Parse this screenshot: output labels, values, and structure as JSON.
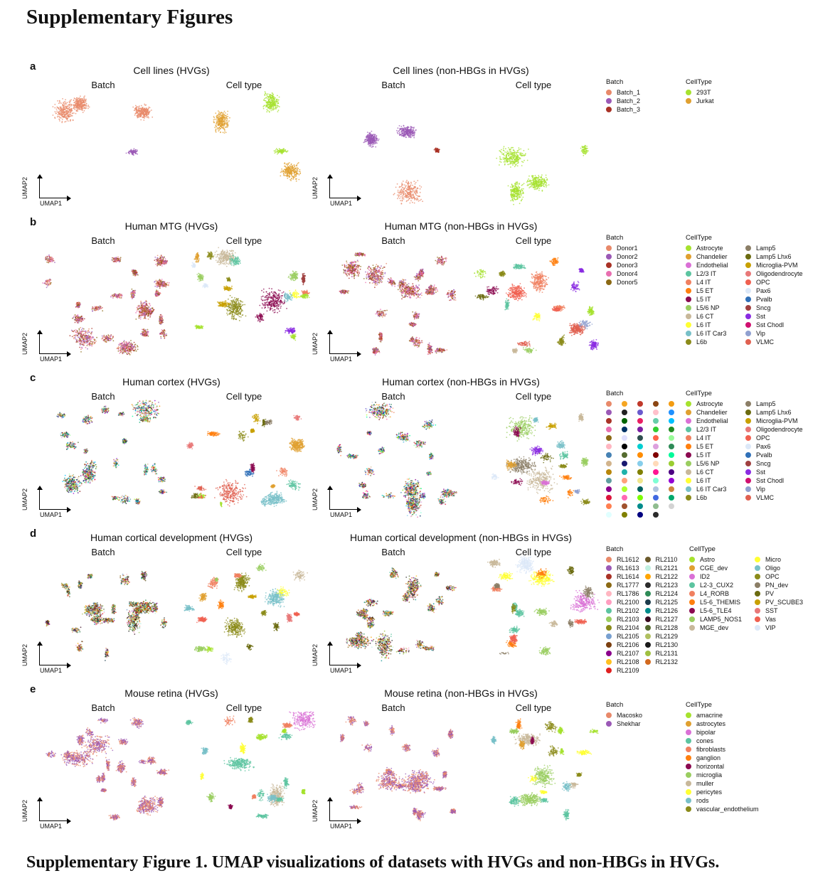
{
  "title": "Supplementary Figures",
  "caption": "Supplementary Figure 1. UMAP visualizations of datasets with HVGs and non-HBGs in HVGs.",
  "axis_labels": {
    "x": "UMAP1",
    "y": "UMAP2"
  },
  "sub_titles": {
    "batch": "Batch",
    "celltype": "Cell type"
  },
  "panels": [
    {
      "letter": "a",
      "left_title": "Cell lines (HVGs)",
      "right_title": "Cell lines (non-HBGs in HVGs)",
      "batch_legend": {
        "title": "Batch",
        "items": [
          {
            "label": "Batch_1",
            "color": "#e8896a"
          },
          {
            "label": "Batch_2",
            "color": "#9b59b6"
          },
          {
            "label": "Batch_3",
            "color": "#a93226"
          }
        ]
      },
      "celltype_legend": {
        "title": "CellType",
        "items": [
          {
            "label": "293T",
            "color": "#a6e22e"
          },
          {
            "label": "Jurkat",
            "color": "#e0a030"
          }
        ]
      }
    },
    {
      "letter": "b",
      "left_title": "Human MTG (HVGs)",
      "right_title": "Human MTG (non-HBGs in HVGs)",
      "batch_legend": {
        "title": "Batch",
        "items": [
          {
            "label": "Donor1",
            "color": "#e8896a"
          },
          {
            "label": "Donor2",
            "color": "#9b59b6"
          },
          {
            "label": "Donor3",
            "color": "#a93226"
          },
          {
            "label": "Donor4",
            "color": "#e86fb0"
          },
          {
            "label": "Donor5",
            "color": "#8b6914"
          }
        ]
      },
      "celltype_legend": {
        "title": "CellType",
        "items": [
          {
            "label": "Astrocyte",
            "color": "#a6e22e"
          },
          {
            "label": "Chandelier",
            "color": "#e0a030"
          },
          {
            "label": "Endothelial",
            "color": "#da70d6"
          },
          {
            "label": "L2/3 IT",
            "color": "#5cc4a0"
          },
          {
            "label": "L4 IT",
            "color": "#f08060"
          },
          {
            "label": "L5 ET",
            "color": "#ff7f0e"
          },
          {
            "label": "L5 IT",
            "color": "#8b0a50"
          },
          {
            "label": "L5/6 NP",
            "color": "#9acd60"
          },
          {
            "label": "L6 CT",
            "color": "#c8b89a"
          },
          {
            "label": "L6 IT",
            "color": "#ffff33"
          },
          {
            "label": "L6 IT Car3",
            "color": "#78c0c8"
          },
          {
            "label": "L6b",
            "color": "#8b8b1a"
          },
          {
            "label": "Lamp5",
            "color": "#8b7e66"
          },
          {
            "label": "Lamp5 Lhx6",
            "color": "#6b6b10"
          },
          {
            "label": "Microglia-PVM",
            "color": "#c8a000"
          },
          {
            "label": "Oligodendrocyte",
            "color": "#e87878"
          },
          {
            "label": "OPC",
            "color": "#f06050"
          },
          {
            "label": "Pax6",
            "color": "#dce8f8"
          },
          {
            "label": "Pvalb",
            "color": "#3070b8"
          },
          {
            "label": "Sncg",
            "color": "#a04040"
          },
          {
            "label": "Sst",
            "color": "#8a2be2"
          },
          {
            "label": "Sst Chodl",
            "color": "#d01070"
          },
          {
            "label": "Vip",
            "color": "#90a0d0"
          },
          {
            "label": "VLMC",
            "color": "#e06050"
          }
        ]
      }
    },
    {
      "letter": "c",
      "left_title": "Human cortex (HVGs)",
      "right_title": "Human cortex (non-HBGs in HVGs)",
      "batch_legend": {
        "title": "Batch",
        "colors": [
          "#e8896a",
          "#f5a623",
          "#c0392b",
          "#8b4513",
          "#f39c12",
          "#9b59b6",
          "#222222",
          "#6a5acd",
          "#ffc0cb",
          "#1e90ff",
          "#a93226",
          "#006400",
          "#e91e63",
          "#66cdaa",
          "#00bfff",
          "#e86fb0",
          "#003366",
          "#7b1fa2",
          "#32cd32",
          "#228b22",
          "#8b6914",
          "#e0e0ff",
          "#2f4f4f",
          "#ff6347",
          "#98fb98",
          "#ffb6c1",
          "#000000",
          "#00ced1",
          "#dda0dd",
          "#2e8b57",
          "#4682b4",
          "#556b2f",
          "#ff8c00",
          "#800000",
          "#00fa9a",
          "#d2b48c",
          "#191970",
          "#87ceeb",
          "#ffdab9",
          "#9acd32",
          "#b8860b",
          "#20b2aa",
          "#808000",
          "#ff1493",
          "#4b0082",
          "#5f9ea0",
          "#ffa07a",
          "#f0e68c",
          "#7fffd4",
          "#9400d3",
          "#8b008b",
          "#adff2f",
          "#006060",
          "#b0c4de",
          "#cd853f",
          "#dc143c",
          "#ff69b4",
          "#7cfc00",
          "#4169e1",
          "#00a86b",
          "#ff7f50",
          "#a0522d",
          "#008b8b",
          "#8fbc8f",
          "#d3d3d3",
          "#e0ffff",
          "#808000",
          "#000080",
          "#2b2b2b"
        ]
      },
      "celltype_legend": {
        "title": "CellType",
        "items": [
          {
            "label": "Astrocyte",
            "color": "#a6e22e"
          },
          {
            "label": "Chandelier",
            "color": "#e0a030"
          },
          {
            "label": "Endothelial",
            "color": "#da70d6"
          },
          {
            "label": "L2/3 IT",
            "color": "#5cc4a0"
          },
          {
            "label": "L4 IT",
            "color": "#f08060"
          },
          {
            "label": "L5 ET",
            "color": "#ff7f0e"
          },
          {
            "label": "L5 IT",
            "color": "#8b0a50"
          },
          {
            "label": "L5/6 NP",
            "color": "#9acd60"
          },
          {
            "label": "L6 CT",
            "color": "#c8b89a"
          },
          {
            "label": "L6 IT",
            "color": "#ffff33"
          },
          {
            "label": "L6 IT Car3",
            "color": "#78c0c8"
          },
          {
            "label": "L6b",
            "color": "#8b8b1a"
          },
          {
            "label": "Lamp5",
            "color": "#8b7e66"
          },
          {
            "label": "Lamp5 Lhx6",
            "color": "#6b6b10"
          },
          {
            "label": "Microglia-PVM",
            "color": "#c8a000"
          },
          {
            "label": "Oligodendrocyte",
            "color": "#e87878"
          },
          {
            "label": "OPC",
            "color": "#f06050"
          },
          {
            "label": "Pax6",
            "color": "#dce8f8"
          },
          {
            "label": "Pvalb",
            "color": "#3070b8"
          },
          {
            "label": "Sncg",
            "color": "#a04040"
          },
          {
            "label": "Sst",
            "color": "#8a2be2"
          },
          {
            "label": "Sst Chodl",
            "color": "#d01070"
          },
          {
            "label": "Vip",
            "color": "#90a0d0"
          },
          {
            "label": "VLMC",
            "color": "#e06050"
          }
        ]
      }
    },
    {
      "letter": "d",
      "left_title": "Human cortical development (HVGs)",
      "right_title": "Human cortical development (non-HBGs in HVGs)",
      "batch_legend": {
        "title": "Batch",
        "items": [
          {
            "label": "RL1612",
            "color": "#e8896a"
          },
          {
            "label": "RL1613",
            "color": "#9b59b6"
          },
          {
            "label": "RL1614",
            "color": "#a93226"
          },
          {
            "label": "RL1777",
            "color": "#8b6914"
          },
          {
            "label": "RL1786",
            "color": "#ffb6c1"
          },
          {
            "label": "RL2100",
            "color": "#ff9ec0"
          },
          {
            "label": "RL2102",
            "color": "#5cc4a0"
          },
          {
            "label": "RL2103",
            "color": "#9acd60"
          },
          {
            "label": "RL2104",
            "color": "#8b8b1a"
          },
          {
            "label": "RL2105",
            "color": "#78a0d0"
          },
          {
            "label": "RL2106",
            "color": "#7b3f10"
          },
          {
            "label": "RL2107",
            "color": "#8b008b"
          },
          {
            "label": "RL2108",
            "color": "#ffc020"
          },
          {
            "label": "RL2109",
            "color": "#e02020"
          },
          {
            "label": "RL2110",
            "color": "#6b5a2b"
          },
          {
            "label": "RL2121",
            "color": "#c0f0e0"
          },
          {
            "label": "RL2122",
            "color": "#ffa500"
          },
          {
            "label": "RL2123",
            "color": "#2b2b2b"
          },
          {
            "label": "RL2124",
            "color": "#2e8b57"
          },
          {
            "label": "RL2125",
            "color": "#1c3b4b"
          },
          {
            "label": "RL2126",
            "color": "#008b8b"
          },
          {
            "label": "RL2127",
            "color": "#3b0a20"
          },
          {
            "label": "RL2128",
            "color": "#556b2f"
          },
          {
            "label": "RL2129",
            "color": "#b0c060"
          },
          {
            "label": "RL2130",
            "color": "#1a1a1a"
          },
          {
            "label": "RL2131",
            "color": "#a0c040"
          },
          {
            "label": "RL2132",
            "color": "#d2691e"
          }
        ]
      },
      "celltype_legend": {
        "title": "CellType",
        "items": [
          {
            "label": "Astro",
            "color": "#a6e22e"
          },
          {
            "label": "CGE_dev",
            "color": "#e0a030"
          },
          {
            "label": "ID2",
            "color": "#da70d6"
          },
          {
            "label": "L2-3_CUX2",
            "color": "#5cc4a0"
          },
          {
            "label": "L4_RORB",
            "color": "#f08060"
          },
          {
            "label": "L5-6_THEMIS",
            "color": "#ff7f0e"
          },
          {
            "label": "L5-6_TLE4",
            "color": "#8b0a50"
          },
          {
            "label": "LAMP5_NOS1",
            "color": "#9acd60"
          },
          {
            "label": "MGE_dev",
            "color": "#c8b89a"
          },
          {
            "label": "Micro",
            "color": "#ffff33"
          },
          {
            "label": "Oligo",
            "color": "#78c0c8"
          },
          {
            "label": "OPC",
            "color": "#8b8b1a"
          },
          {
            "label": "PN_dev",
            "color": "#8b7e66"
          },
          {
            "label": "PV",
            "color": "#6b6b10"
          },
          {
            "label": "PV_SCUBE3",
            "color": "#c8a000"
          },
          {
            "label": "SST",
            "color": "#e87878"
          },
          {
            "label": "Vas",
            "color": "#f06050"
          },
          {
            "label": "VIP",
            "color": "#dce8f8"
          }
        ]
      }
    },
    {
      "letter": "e",
      "left_title": "Mouse retina (HVGs)",
      "right_title": "Mouse retina (non-HBGs in HVGs)",
      "batch_legend": {
        "title": "Batch",
        "items": [
          {
            "label": "Macosko",
            "color": "#e8896a"
          },
          {
            "label": "Shekhar",
            "color": "#9b59b6"
          }
        ]
      },
      "celltype_legend": {
        "title": "CellType",
        "items": [
          {
            "label": "amacrine",
            "color": "#a6e22e"
          },
          {
            "label": "astrocytes",
            "color": "#e0a030"
          },
          {
            "label": "bipolar",
            "color": "#da70d6"
          },
          {
            "label": "cones",
            "color": "#5cc4a0"
          },
          {
            "label": "fibroblasts",
            "color": "#f08060"
          },
          {
            "label": "ganglion",
            "color": "#ff7f0e"
          },
          {
            "label": "horizontal",
            "color": "#8b0a50"
          },
          {
            "label": "microglia",
            "color": "#9acd60"
          },
          {
            "label": "muller",
            "color": "#c8b89a"
          },
          {
            "label": "pericytes",
            "color": "#ffff33"
          },
          {
            "label": "rods",
            "color": "#78c0c8"
          },
          {
            "label": "vascular_endothelium",
            "color": "#8b8b1a"
          }
        ]
      }
    }
  ]
}
